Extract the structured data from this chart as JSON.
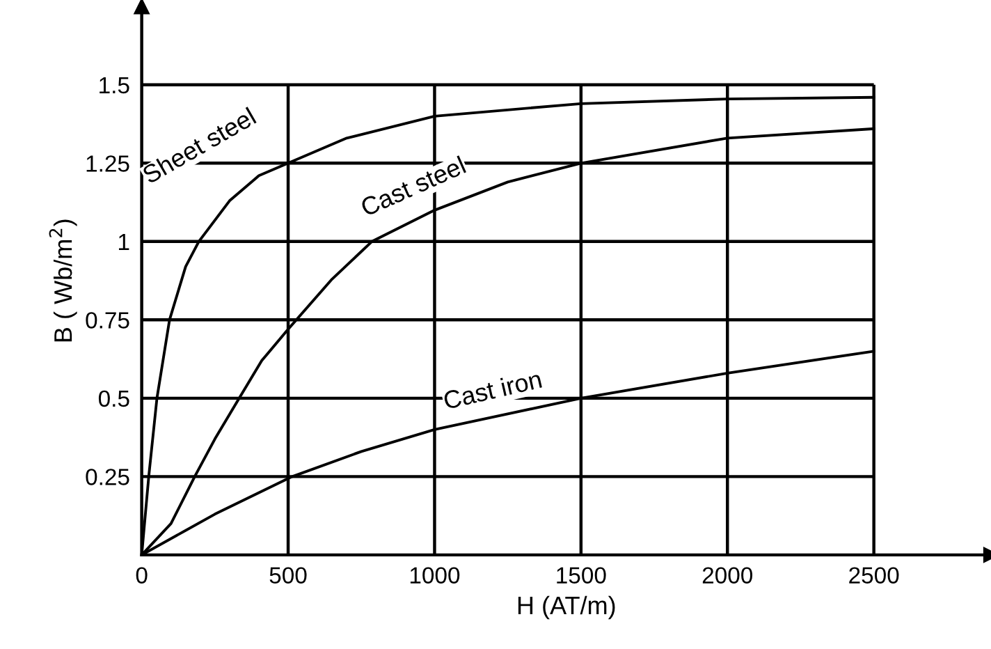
{
  "chart_data": {
    "type": "line",
    "xlabel": "H (AT/m)",
    "ylabel": "B ( Wb/m$^{2}$)",
    "xlim": [
      0,
      2900
    ],
    "ylim": [
      0,
      1.75
    ],
    "xticks": [
      0,
      500,
      1000,
      1500,
      2000,
      2500
    ],
    "yticks": [
      0.25,
      0.5,
      0.75,
      1,
      1.25,
      1.5
    ],
    "grid": true,
    "legend": false,
    "marker": "none",
    "line_style": "solid",
    "series": [
      {
        "name": "Sheet steel",
        "color": "#000000",
        "x": [
          0,
          24,
          52,
          95,
          150,
          195,
          300,
          400,
          500,
          700,
          1000,
          1500,
          2000,
          2500
        ],
        "values": [
          0,
          0.25,
          0.5,
          0.75,
          0.92,
          1.0,
          1.13,
          1.21,
          1.25,
          1.33,
          1.4,
          1.44,
          1.455,
          1.46
        ]
      },
      {
        "name": "Cast steel",
        "color": "#000000",
        "x": [
          0,
          100,
          181,
          250,
          333,
          410,
          500,
          650,
          786,
          1000,
          1250,
          1500,
          2000,
          2500
        ],
        "values": [
          0,
          0.1,
          0.25,
          0.37,
          0.5,
          0.62,
          0.72,
          0.88,
          1.0,
          1.1,
          1.19,
          1.25,
          1.33,
          1.36
        ]
      },
      {
        "name": "Cast iron",
        "color": "#000000",
        "x": [
          0,
          250,
          514,
          750,
          1000,
          1500,
          2000,
          2500
        ],
        "values": [
          0,
          0.13,
          0.25,
          0.33,
          0.4,
          0.5,
          0.58,
          0.65
        ]
      }
    ]
  }
}
